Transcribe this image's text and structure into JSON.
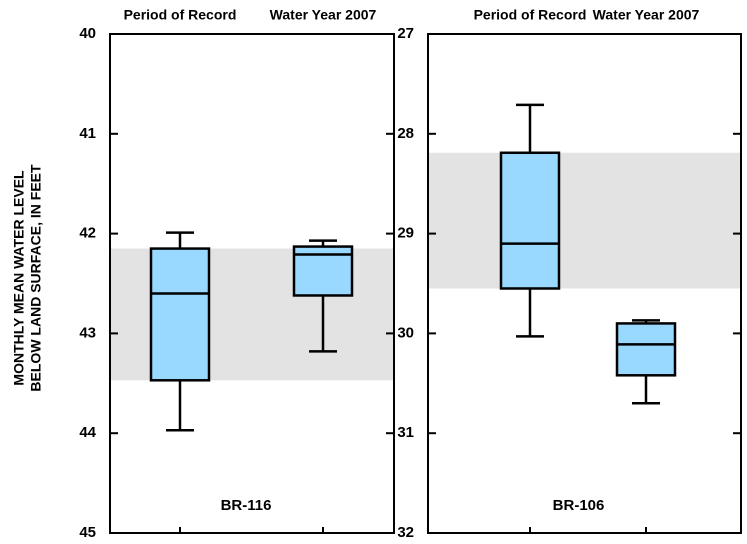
{
  "chart_data": [
    {
      "type": "box",
      "ylabel": [
        "MONTHLY MEAN WATER LEVEL",
        "BELOW LAND SURFACE, IN FEET"
      ],
      "annotation": "BR-116",
      "categories": [
        "Period of Record",
        "Water Year 2007"
      ],
      "ylim": [
        40,
        45
      ],
      "y_inverted": true,
      "yticks": [
        40,
        41,
        42,
        43,
        44,
        45
      ],
      "color": "#99d9ff",
      "band_color": "#e3e3e3",
      "boxes": [
        {
          "min": 41.99,
          "q1": 42.15,
          "median": 42.6,
          "q3": 43.47,
          "max": 43.97
        },
        {
          "min": 42.07,
          "q1": 42.13,
          "median": 42.21,
          "q3": 42.62,
          "max": 43.18
        }
      ]
    },
    {
      "type": "box",
      "annotation": "BR-106",
      "categories": [
        "Period of Record",
        "Water Year 2007"
      ],
      "ylim": [
        27,
        32
      ],
      "y_inverted": true,
      "yticks": [
        27,
        28,
        29,
        30,
        31,
        32
      ],
      "color": "#99d9ff",
      "band_color": "#e3e3e3",
      "boxes": [
        {
          "min": 27.71,
          "q1": 28.19,
          "median": 29.1,
          "q3": 29.55,
          "max": 30.03
        },
        {
          "min": 29.87,
          "q1": 29.9,
          "median": 30.11,
          "q3": 30.42,
          "max": 30.7
        }
      ]
    }
  ]
}
